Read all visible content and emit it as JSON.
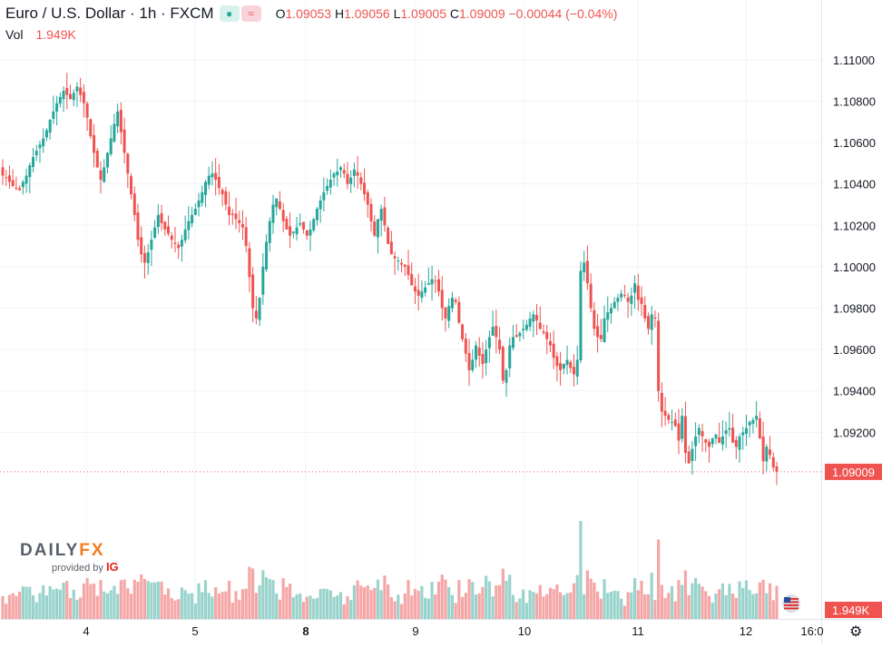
{
  "legend": {
    "symbol": "Euro / U.S. Dollar · 1h · FXCM",
    "o_label": "O",
    "o": "1.09053",
    "h_label": "H",
    "h": "1.09056",
    "l_label": "L",
    "l": "1.09005",
    "c_label": "C",
    "c": "1.09009",
    "change": "−0.00044 (−0.04%)",
    "vol_label": "Vol",
    "vol_value": "1.949K"
  },
  "price_tag": "1.09009",
  "volume_tag": "1.949K",
  "logo": {
    "brand1": "DAILY",
    "brand2": "FX",
    "provided": "provided by",
    "ig": "IG"
  },
  "icons": {
    "settings": "gear-icon",
    "event": "us-flag-icon"
  },
  "colors": {
    "up": "#26a69a",
    "down": "#ef5350",
    "vol_up": "#99d3cc",
    "vol_down": "#f5a6a6",
    "grid": "#f0f3fa"
  },
  "chart_data": {
    "type": "candlestick",
    "title": "Euro / U.S. Dollar · 1h · FXCM",
    "y_axis_ticks": [
      "1.11000",
      "1.10800",
      "1.10600",
      "1.10400",
      "1.10200",
      "1.10000",
      "1.09800",
      "1.09600",
      "1.09400",
      "1.09200"
    ],
    "ylim": [
      1.0875,
      1.1115
    ],
    "x_axis_ticks": [
      "4",
      "5",
      "8",
      "9",
      "10",
      "11",
      "12",
      "16:0"
    ],
    "last_price": 1.09009,
    "last_volume": "1.949K",
    "close_series": [
      1.1044,
      1.1043,
      1.1041,
      1.1039,
      1.1038,
      1.1037,
      1.1041,
      1.1044,
      1.1049,
      1.1053,
      1.1056,
      1.1059,
      1.1062,
      1.1066,
      1.1071,
      1.1075,
      1.1079,
      1.1082,
      1.1085,
      1.1083,
      1.1081,
      1.1084,
      1.1087,
      1.1083,
      1.1079,
      1.1072,
      1.1063,
      1.1055,
      1.1048,
      1.1042,
      1.1048,
      1.1055,
      1.1062,
      1.1069,
      1.1075,
      1.1065,
      1.1055,
      1.1045,
      1.1035,
      1.1025,
      1.1013,
      1.1006,
      1.1002,
      1.1007,
      1.1013,
      1.1019,
      1.1025,
      1.1021,
      1.1018,
      1.1016,
      1.1013,
      1.1011,
      1.1009,
      1.1013,
      1.1018,
      1.1022,
      1.1025,
      1.1028,
      1.1032,
      1.1036,
      1.1041,
      1.1044,
      1.1045,
      1.1042,
      1.1038,
      1.1035,
      1.103,
      1.1025,
      1.1025,
      1.1023,
      1.1021,
      1.1019,
      1.101,
      1.0995,
      1.098,
      1.0975,
      1.0985,
      1.1,
      1.1012,
      1.1022,
      1.103,
      1.1033,
      1.1028,
      1.1022,
      1.1018,
      1.1015,
      1.1017,
      1.1019,
      1.1021,
      1.1018,
      1.1015,
      1.1018,
      1.1023,
      1.1028,
      1.1032,
      1.1036,
      1.1039,
      1.1042,
      1.1045,
      1.1046,
      1.1048,
      1.1045,
      1.104,
      1.1043,
      1.1047,
      1.1044,
      1.104,
      1.1035,
      1.103,
      1.1022,
      1.1015,
      1.1023,
      1.1028,
      1.102,
      1.1011,
      1.1006,
      1.1004,
      1.1003,
      1.1001,
      1.1,
      1.0996,
      1.0991,
      1.0988,
      1.0986,
      1.0988,
      1.099,
      1.0992,
      1.0994,
      1.0993,
      1.0988,
      1.098,
      1.0975,
      1.0981,
      1.0985,
      1.0983,
      1.0973,
      1.0965,
      1.0958,
      1.095,
      1.0955,
      1.0962,
      1.0957,
      1.0953,
      1.096,
      1.0966,
      1.0971,
      1.0966,
      1.096,
      1.0945,
      1.095,
      1.0962,
      1.0966,
      1.0966,
      1.0968,
      1.097,
      1.0972,
      1.0975,
      1.0977,
      1.0974,
      1.097,
      1.0968,
      1.0965,
      1.0962,
      1.0956,
      1.0952,
      1.095,
      1.0953,
      1.0955,
      1.0951,
      1.0948,
      1.0955,
      1.0998,
      1.1002,
      1.0992,
      1.098,
      1.097,
      1.0966,
      1.0965,
      1.0975,
      1.0978,
      1.098,
      1.0983,
      1.0985,
      1.0987,
      1.0986,
      1.0983,
      1.0986,
      1.0992,
      1.0984,
      1.0982,
      1.0975,
      1.097,
      1.0977,
      1.0975,
      1.094,
      1.093,
      1.0928,
      1.0926,
      1.0925,
      1.0923,
      1.0916,
      1.0928,
      1.091,
      1.0905,
      1.0912,
      1.0918,
      1.0922,
      1.0918,
      1.0915,
      1.0913,
      1.0917,
      1.0919,
      1.0915,
      1.0918,
      1.0921,
      1.0922,
      1.0915,
      1.0913,
      1.0918,
      1.092,
      1.0922,
      1.0925,
      1.0926,
      1.0928,
      1.0917,
      1.0906,
      1.0913,
      1.0909,
      1.0903,
      1.0901
    ]
  }
}
